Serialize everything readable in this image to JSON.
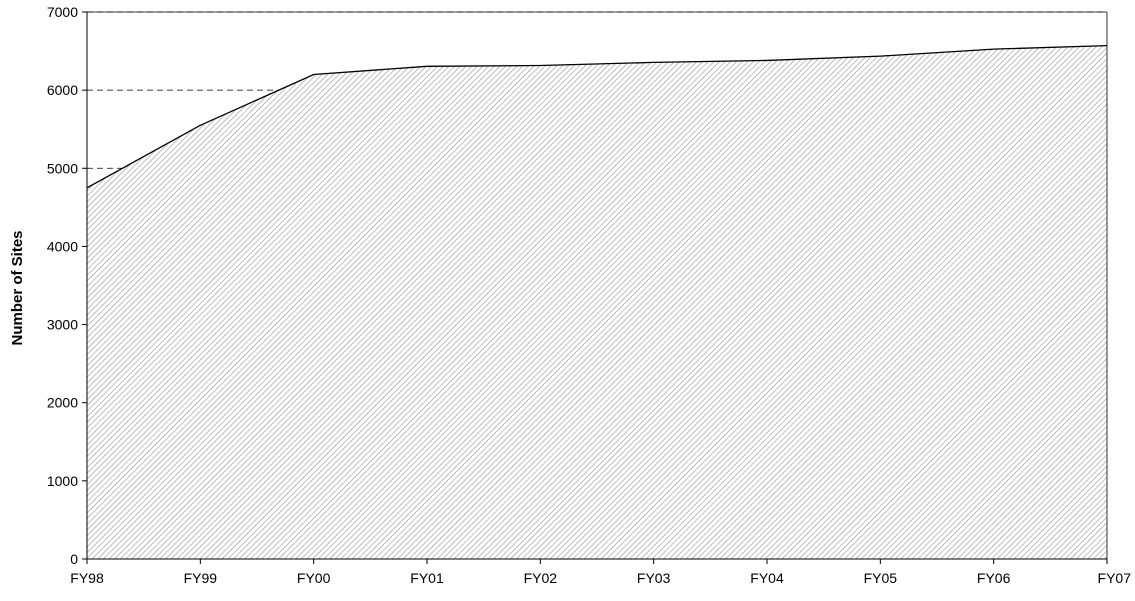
{
  "chart_data": {
    "type": "area",
    "title": "",
    "xlabel": "",
    "ylabel": "Number of Sites",
    "categories": [
      "FY98",
      "FY99",
      "FY00",
      "FY01",
      "FY02",
      "FY03",
      "FY04",
      "FY05",
      "FY06",
      "FY07"
    ],
    "values": [
      4750,
      5550,
      6200,
      6305,
      6315,
      6355,
      6380,
      6435,
      6525,
      6570
    ],
    "ylim": [
      0,
      7000
    ],
    "yticks": [
      0,
      1000,
      2000,
      3000,
      4000,
      5000,
      6000,
      7000
    ],
    "grid": "dashed horizontal at 5000, 6000, 7000",
    "legend": "none",
    "colors": {
      "line": "#000000",
      "fill_hatch": "#8c8c8c",
      "background": "#ffffff",
      "grid": "#000000"
    }
  }
}
